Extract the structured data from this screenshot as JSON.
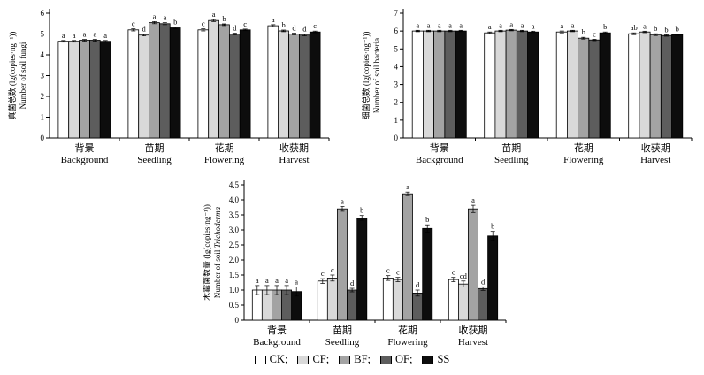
{
  "legend": {
    "items": [
      {
        "series": "CK",
        "label": "CK;",
        "color": "#ffffff"
      },
      {
        "series": "CF",
        "label": "CF;",
        "color": "#d9d9d9"
      },
      {
        "series": "BF",
        "label": "BF;",
        "color": "#a3a3a3"
      },
      {
        "series": "OF",
        "label": "OF;",
        "color": "#5d5d5d"
      },
      {
        "series": "SS",
        "label": "SS",
        "color": "#0d0d0d"
      }
    ]
  },
  "chart_data": [
    {
      "type": "bar",
      "id": "soil-fungi",
      "ylabel_cn": "真菌总数 (lg(copies·ng⁻¹))",
      "ylabel_en": "Number of soil fungi",
      "ylim": [
        0,
        6
      ],
      "yticks": [
        0,
        1,
        2,
        3,
        4,
        5,
        6
      ],
      "ytick_labels": [
        "0",
        "1",
        "2",
        "3",
        "4",
        "5",
        "6"
      ],
      "series_names": [
        "CK",
        "CF",
        "BF",
        "OF",
        "SS"
      ],
      "categories": [
        {
          "cn": "背景",
          "en": "Background"
        },
        {
          "cn": "苗期",
          "en": "Seedling"
        },
        {
          "cn": "花期",
          "en": "Flowering"
        },
        {
          "cn": "收获期",
          "en": "Harvest"
        }
      ],
      "values": [
        [
          4.65,
          4.65,
          4.7,
          4.7,
          4.65
        ],
        [
          5.2,
          4.95,
          5.55,
          5.5,
          5.3
        ],
        [
          5.2,
          5.65,
          5.45,
          5.0,
          5.2
        ],
        [
          5.4,
          5.15,
          5.0,
          4.95,
          5.1
        ]
      ],
      "errors": [
        [
          0.04,
          0.04,
          0.04,
          0.04,
          0.04
        ],
        [
          0.05,
          0.04,
          0.05,
          0.05,
          0.04
        ],
        [
          0.05,
          0.05,
          0.04,
          0.04,
          0.04
        ],
        [
          0.05,
          0.04,
          0.04,
          0.04,
          0.04
        ]
      ],
      "letters": [
        [
          "a",
          "a",
          "a",
          "a",
          "a"
        ],
        [
          "c",
          "d",
          "a",
          "a",
          "b"
        ],
        [
          "c",
          "a",
          "b",
          "d",
          "c"
        ],
        [
          "a",
          "b",
          "d",
          "d",
          "c"
        ]
      ]
    },
    {
      "type": "bar",
      "id": "soil-bacteria",
      "ylabel_cn": "细菌总数 (lg(copies·ng⁻¹))",
      "ylabel_en": "Number of soil bacteria",
      "ylim": [
        0,
        7
      ],
      "yticks": [
        0,
        1,
        2,
        3,
        4,
        5,
        6,
        7
      ],
      "ytick_labels": [
        "0",
        "1",
        "2",
        "3",
        "4",
        "5",
        "6",
        "7"
      ],
      "series_names": [
        "CK",
        "CF",
        "BF",
        "OF",
        "SS"
      ],
      "categories": [
        {
          "cn": "背景",
          "en": "Background"
        },
        {
          "cn": "苗期",
          "en": "Seedling"
        },
        {
          "cn": "花期",
          "en": "Flowering"
        },
        {
          "cn": "收获期",
          "en": "Harvest"
        }
      ],
      "values": [
        [
          6.0,
          6.0,
          6.0,
          6.0,
          6.0
        ],
        [
          5.9,
          6.0,
          6.05,
          6.0,
          5.95
        ],
        [
          5.95,
          6.0,
          5.6,
          5.5,
          5.9
        ],
        [
          5.85,
          5.95,
          5.8,
          5.75,
          5.8
        ]
      ],
      "errors": [
        [
          0.04,
          0.04,
          0.04,
          0.04,
          0.04
        ],
        [
          0.05,
          0.04,
          0.04,
          0.04,
          0.04
        ],
        [
          0.05,
          0.04,
          0.05,
          0.04,
          0.05
        ],
        [
          0.05,
          0.04,
          0.05,
          0.04,
          0.04
        ]
      ],
      "letters": [
        [
          "a",
          "a",
          "a",
          "a",
          "a"
        ],
        [
          "a",
          "a",
          "a",
          "a",
          "a"
        ],
        [
          "a",
          "a",
          "b",
          "c",
          "b"
        ],
        [
          "ab",
          "a",
          "b",
          "b",
          "b"
        ]
      ]
    },
    {
      "type": "bar",
      "id": "soil-trichoderma",
      "ylabel_cn": "木霉菌数量 (lg(copies·ng⁻¹))",
      "ylabel_en": "Number of soil Trichoderma",
      "ylabel_en_italic": "Trichoderma",
      "ylim": [
        0,
        4.5
      ],
      "yticks": [
        0,
        0.5,
        1.0,
        1.5,
        2.0,
        2.5,
        3.0,
        3.5,
        4.0,
        4.5
      ],
      "ytick_labels": [
        "0",
        "0.5",
        "1.0",
        "1.5",
        "2.0",
        "2.5",
        "3.0",
        "3.5",
        "4.0",
        "4.5"
      ],
      "series_names": [
        "CK",
        "CF",
        "BF",
        "OF",
        "SS"
      ],
      "categories": [
        {
          "cn": "背景",
          "en": "Background"
        },
        {
          "cn": "苗期",
          "en": "Seedling"
        },
        {
          "cn": "花期",
          "en": "Flowering"
        },
        {
          "cn": "收获期",
          "en": "Harvest"
        }
      ],
      "values": [
        [
          1.0,
          1.0,
          1.0,
          1.0,
          0.95
        ],
        [
          1.3,
          1.4,
          3.7,
          1.0,
          3.4
        ],
        [
          1.4,
          1.35,
          4.2,
          0.9,
          3.05
        ],
        [
          1.35,
          1.2,
          3.7,
          1.05,
          2.8
        ]
      ],
      "errors": [
        [
          0.15,
          0.15,
          0.15,
          0.15,
          0.15
        ],
        [
          0.08,
          0.1,
          0.08,
          0.06,
          0.08
        ],
        [
          0.08,
          0.07,
          0.06,
          0.1,
          0.12
        ],
        [
          0.07,
          0.1,
          0.12,
          0.06,
          0.15
        ]
      ],
      "letters": [
        [
          "a",
          "a",
          "a",
          "a",
          "a"
        ],
        [
          "c",
          "c",
          "a",
          "d",
          "b"
        ],
        [
          "c",
          "c",
          "a",
          "d",
          "b"
        ],
        [
          "c",
          "cd",
          "a",
          "d",
          "b"
        ]
      ]
    }
  ]
}
